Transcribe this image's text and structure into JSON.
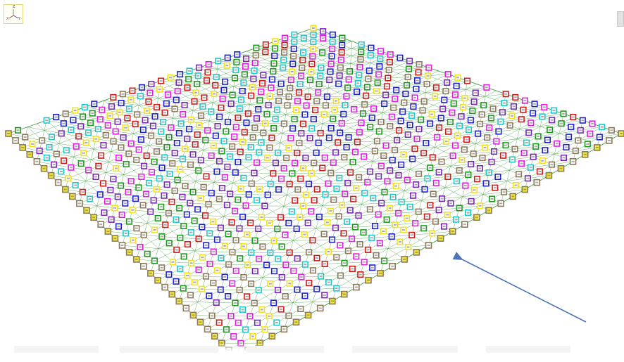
{
  "viewport": {
    "kind": "3d-model-view",
    "axis_triad": {
      "labels": [
        "Z",
        "X",
        "Y"
      ]
    },
    "colors": {
      "background": "#ffffff",
      "mesh_lines": "#3a9a3a",
      "annotation_arrow": "#4a74b4",
      "label_palette": [
        "#e21ee2",
        "#2222cc",
        "#d01c1c",
        "#20c8c8",
        "#f2e21e",
        "#1e9a1e",
        "#8c7a5a",
        "#7a28b4"
      ],
      "edge_label_fill": "#f2ea3a",
      "edge_label_border": "#8c7a5a"
    }
  },
  "annotation": {
    "type": "arrow",
    "icon": "arrow-icon"
  },
  "scroll": {
    "icon": "scrollbar-stub"
  }
}
